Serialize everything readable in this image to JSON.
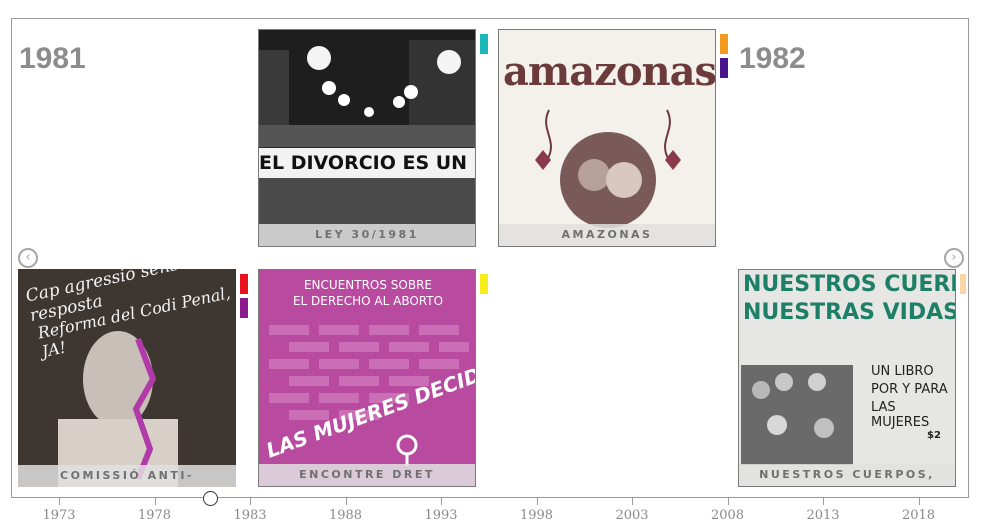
{
  "years": {
    "left": "1981",
    "right": "1982"
  },
  "cards": [
    {
      "id": "ley",
      "caption": "LEY 30/1981",
      "banner": "EL DIVORCIO ES UN"
    },
    {
      "id": "amazonas",
      "caption": "AMAZONAS",
      "title": "amazonas"
    },
    {
      "id": "comissio",
      "caption": "COMISSIÓ ANTI-",
      "line1": "Cap agressió sense resposta",
      "line2": "Reforma del Codi Penal, JA!"
    },
    {
      "id": "encontre",
      "caption": "ENCONTRE DRET",
      "line1": "ENCUENTROS SOBRE",
      "line2": "EL DERECHO AL ABORTO",
      "line3": "LAS MUJERES DECIDIMOS"
    },
    {
      "id": "nuestros",
      "caption": "NUESTROS CUERPOS,",
      "line1": "NUESTROS CUERPOS,",
      "line2": "NUESTRAS VIDAS",
      "line3": "UN LIBRO",
      "line4": "POR Y PARA",
      "line5": "LAS MUJERES",
      "price": "$2"
    }
  ],
  "tags": {
    "teal": "#1bb8b8",
    "orange": "#f39a1e",
    "indigo": "#4a148c",
    "red": "#e8121e",
    "purple": "#8e1b8e",
    "yellow": "#f5ee1a",
    "peach": "#fdd6a8"
  },
  "nav": {
    "prev": "‹",
    "next": "›"
  },
  "axis": {
    "ticks": [
      "1973",
      "1978",
      "1983",
      "1988",
      "1993",
      "1998",
      "2003",
      "2008",
      "2013",
      "2018"
    ]
  }
}
